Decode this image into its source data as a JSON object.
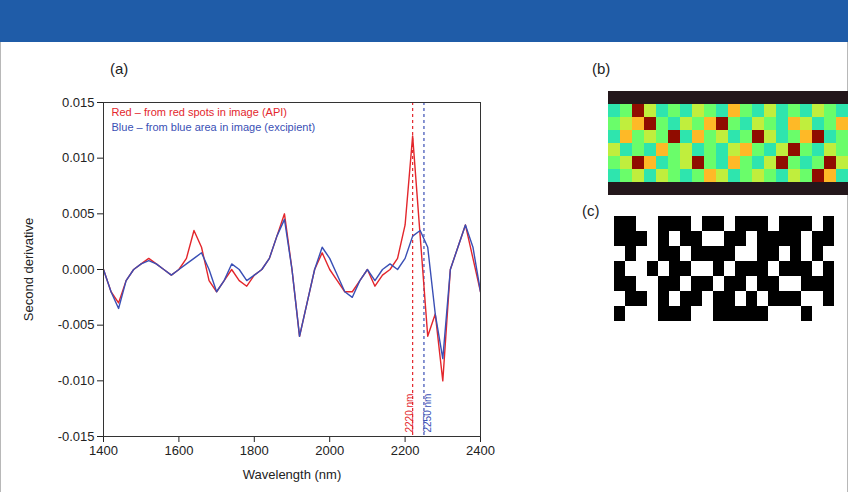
{
  "chart_data": [
    {
      "type": "line",
      "panel": "(a)",
      "x_label": "Wavelength (nm)",
      "y_label": "Second derivative",
      "xlim": [
        1400,
        2400
      ],
      "xticks": [
        1400,
        1600,
        1800,
        2000,
        2200,
        2400
      ],
      "ylim": [
        -0.015,
        0.015
      ],
      "yticks": [
        -0.015,
        {
          "value": -0.01,
          "label": "-0.010"
        },
        -0.005,
        {
          "value": 0,
          "label": "0.000"
        },
        0.005,
        {
          "value": 0.01,
          "label": "0.010"
        },
        0.015
      ],
      "grid": false,
      "legend": "top-left",
      "x": [
        1400,
        1420,
        1440,
        1460,
        1480,
        1500,
        1520,
        1540,
        1560,
        1580,
        1600,
        1620,
        1640,
        1660,
        1680,
        1700,
        1720,
        1740,
        1760,
        1780,
        1800,
        1820,
        1840,
        1860,
        1880,
        1900,
        1920,
        1940,
        1960,
        1980,
        2000,
        2020,
        2040,
        2060,
        2080,
        2100,
        2120,
        2140,
        2160,
        2180,
        2200,
        2220,
        2240,
        2260,
        2280,
        2300,
        2320,
        2340,
        2360,
        2380,
        2400
      ],
      "series": [
        {
          "name": "Red – from red spots in image (API)",
          "color": "#e3262c",
          "values": [
            0,
            -0.002,
            -0.003,
            -0.001,
            0,
            0.0005,
            0.001,
            0.0005,
            0,
            -0.0005,
            0,
            0.001,
            0.0035,
            0.002,
            -0.001,
            -0.002,
            -0.001,
            0,
            -0.001,
            -0.0015,
            -0.0005,
            0,
            0.001,
            0.003,
            0.005,
            0,
            -0.006,
            -0.003,
            0,
            0.0015,
            0,
            -0.001,
            -0.002,
            -0.002,
            -0.001,
            0,
            -0.0015,
            -0.0005,
            0,
            0.001,
            0.004,
            0.012,
            0.003,
            -0.006,
            -0.004,
            -0.01,
            0,
            0.002,
            0.004,
            0.001,
            -0.002
          ]
        },
        {
          "name": "Blue – from blue area in image (excipient)",
          "color": "#3a4fb5",
          "values": [
            0,
            -0.002,
            -0.0035,
            -0.001,
            0,
            0.0005,
            0.0008,
            0.0005,
            0,
            -0.0005,
            0,
            0.0005,
            0.001,
            0.0015,
            0,
            -0.002,
            -0.001,
            0.0005,
            0,
            -0.001,
            -0.0005,
            0,
            0.001,
            0.003,
            0.0045,
            0,
            -0.006,
            -0.003,
            0,
            0.002,
            0.001,
            -0.0005,
            -0.002,
            -0.0025,
            -0.001,
            0,
            -0.001,
            0,
            0.0005,
            0,
            0.001,
            0.003,
            0.0035,
            0.002,
            -0.004,
            -0.008,
            0,
            0.002,
            0.004,
            0.002,
            -0.002
          ]
        }
      ],
      "annotations": [
        {
          "x": 2220,
          "label": "2220 nm",
          "color": "#e3262c"
        },
        {
          "x": 2250,
          "label": "2250 nm",
          "color": "#3a4fb5"
        }
      ]
    },
    {
      "type": "heatmap",
      "panel": "(b)",
      "cells": [
        [
          0,
          0,
          0,
          0,
          0,
          0,
          0,
          0,
          0,
          0,
          0,
          0,
          0,
          0,
          0,
          0,
          0,
          0,
          0,
          0
        ],
        [
          3,
          4,
          9,
          5,
          3,
          4,
          3,
          5,
          4,
          3,
          6,
          4,
          3,
          5,
          3,
          4,
          3,
          5,
          4,
          3
        ],
        [
          4,
          5,
          6,
          9,
          4,
          3,
          5,
          4,
          6,
          9,
          4,
          3,
          5,
          4,
          3,
          6,
          5,
          3,
          4,
          6
        ],
        [
          3,
          6,
          4,
          5,
          4,
          9,
          3,
          6,
          4,
          5,
          3,
          4,
          9,
          5,
          3,
          4,
          6,
          9,
          3,
          4
        ],
        [
          5,
          3,
          4,
          3,
          6,
          4,
          5,
          3,
          4,
          3,
          5,
          6,
          4,
          3,
          5,
          9,
          4,
          3,
          5,
          4
        ],
        [
          4,
          5,
          9,
          6,
          3,
          4,
          5,
          9,
          4,
          3,
          6,
          4,
          3,
          5,
          9,
          4,
          3,
          4,
          9,
          5
        ],
        [
          3,
          4,
          5,
          3,
          5,
          4,
          3,
          4,
          6,
          5,
          3,
          4,
          5,
          4,
          3,
          5,
          4,
          9,
          6,
          3
        ],
        [
          0,
          0,
          0,
          0,
          0,
          0,
          0,
          0,
          0,
          0,
          0,
          0,
          0,
          0,
          0,
          0,
          0,
          0,
          0,
          0
        ]
      ]
    },
    {
      "type": "heatmap",
      "panel": "(c)",
      "colors": [
        "#000000",
        "#ffffff"
      ],
      "cells": [
        [
          0,
          0,
          1,
          1,
          0,
          0,
          0,
          1,
          0,
          0,
          1,
          0,
          0,
          0,
          1,
          0,
          0,
          0,
          1,
          0
        ],
        [
          0,
          0,
          0,
          1,
          0,
          1,
          0,
          0,
          1,
          1,
          0,
          0,
          1,
          0,
          0,
          0,
          0,
          1,
          0,
          0
        ],
        [
          1,
          0,
          1,
          1,
          0,
          0,
          1,
          0,
          0,
          0,
          0,
          1,
          1,
          0,
          0,
          1,
          0,
          1,
          0,
          1
        ],
        [
          0,
          1,
          1,
          0,
          1,
          0,
          0,
          1,
          1,
          0,
          1,
          0,
          0,
          0,
          1,
          0,
          0,
          0,
          1,
          0
        ],
        [
          0,
          0,
          1,
          1,
          0,
          0,
          1,
          0,
          0,
          1,
          0,
          0,
          1,
          0,
          0,
          1,
          1,
          0,
          0,
          0
        ],
        [
          1,
          0,
          0,
          1,
          0,
          1,
          0,
          0,
          1,
          0,
          0,
          1,
          0,
          1,
          0,
          0,
          0,
          1,
          1,
          0
        ],
        [
          0,
          1,
          1,
          1,
          0,
          0,
          0,
          1,
          1,
          0,
          0,
          0,
          0,
          0,
          1,
          1,
          1,
          0,
          1,
          1
        ]
      ]
    }
  ]
}
